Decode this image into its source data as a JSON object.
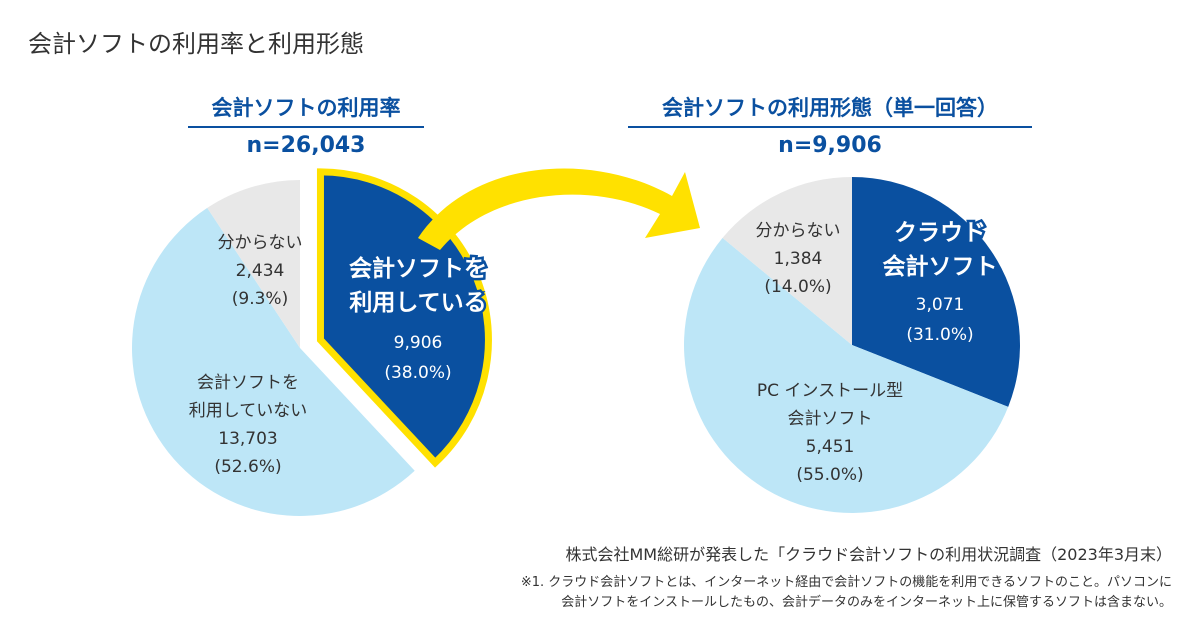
{
  "title": "会計ソフトの利用率と利用形態",
  "colors": {
    "dark_blue": "#0a50a0",
    "light_blue": "#bde6f7",
    "gray": "#e8e8e8",
    "yellow": "#ffe100"
  },
  "chart_data": [
    {
      "type": "pie",
      "title": "会計ソフトの利用率",
      "n_label": "n=26,043",
      "slices": [
        {
          "label_lines": [
            "会計ソフトを",
            "利用している"
          ],
          "value": 9906,
          "value_label": "9,906",
          "percent": 38.0,
          "percent_label": "(38.0%)",
          "color": "#0a50a0",
          "exploded": true,
          "highlight": "#ffe100"
        },
        {
          "label_lines": [
            "会計ソフトを",
            "利用していない"
          ],
          "value": 13703,
          "value_label": "13,703",
          "percent": 52.6,
          "percent_label": "(52.6%)",
          "color": "#bde6f7"
        },
        {
          "label_lines": [
            "分からない"
          ],
          "value": 2434,
          "value_label": "2,434",
          "percent": 9.3,
          "percent_label": "(9.3%)",
          "color": "#e8e8e8"
        }
      ]
    },
    {
      "type": "pie",
      "title": "会計ソフトの利用形態（単一回答）",
      "n_label": "n=9,906",
      "slices": [
        {
          "label_lines": [
            "クラウド",
            "会計ソフト"
          ],
          "value": 3071,
          "value_label": "3,071",
          "percent": 31.0,
          "percent_label": "(31.0%)",
          "color": "#0a50a0"
        },
        {
          "label_lines": [
            "PC インストール型",
            "会計ソフト"
          ],
          "value": 5451,
          "value_label": "5,451",
          "percent": 55.0,
          "percent_label": "(55.0%)",
          "color": "#bde6f7"
        },
        {
          "label_lines": [
            "分からない"
          ],
          "value": 1384,
          "value_label": "1,384",
          "percent": 14.0,
          "percent_label": "(14.0%)",
          "color": "#e8e8e8"
        }
      ]
    }
  ],
  "source": "株式会社MM総研が発表した「クラウド会計ソフトの利用状況調査（2023年3月末）",
  "note_lines": [
    "※1. クラウド会計ソフトとは、インターネット経由で会計ソフトの機能を利用できるソフトのこと。パソコンに",
    "会計ソフトをインストールしたもの、会計データのみをインターネット上に保管するソフトは含まない。"
  ]
}
